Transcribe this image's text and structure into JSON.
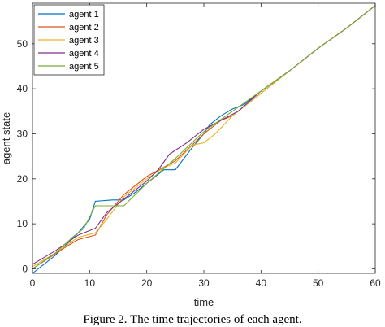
{
  "chart_data": {
    "type": "line",
    "xlabel": "time",
    "ylabel": "agent state",
    "xlim": [
      0,
      60
    ],
    "ylim": [
      -1,
      59
    ],
    "xticks": [
      0,
      10,
      20,
      30,
      40,
      50,
      60
    ],
    "yticks": [
      0,
      10,
      20,
      30,
      40,
      50
    ],
    "grid": false,
    "legend_position": "top-left",
    "series": [
      {
        "name": "agent 1",
        "color": "#0072BD",
        "x": [
          0,
          2,
          4,
          6,
          8,
          10,
          11,
          14,
          16,
          18,
          20,
          22,
          23,
          25,
          28,
          30,
          31,
          33,
          35,
          37,
          40,
          45,
          50,
          55,
          60
        ],
        "values": [
          -1,
          1,
          3,
          5.5,
          8,
          11,
          15,
          15.3,
          15.3,
          17,
          19,
          21,
          22,
          22,
          27,
          30,
          32,
          34,
          35.5,
          36.5,
          39.5,
          44,
          49,
          53.5,
          58.5
        ]
      },
      {
        "name": "agent 2",
        "color": "#D95319",
        "x": [
          0,
          3,
          6,
          8,
          11,
          13,
          16,
          20,
          25,
          30,
          33,
          35,
          40,
          45,
          50,
          55,
          60
        ],
        "values": [
          0,
          2.5,
          5,
          6.5,
          7.5,
          12,
          16.5,
          20.5,
          24,
          30,
          33,
          34,
          39,
          44,
          49,
          53.5,
          58.5
        ]
      },
      {
        "name": "agent 3",
        "color": "#EDB120",
        "x": [
          0,
          4,
          8,
          11,
          13,
          16,
          20,
          23,
          25,
          28,
          30,
          32,
          35,
          40,
          45,
          50,
          55,
          60
        ],
        "values": [
          0.5,
          3.5,
          7,
          8,
          11,
          16,
          20,
          22.5,
          23.5,
          27.5,
          28,
          30,
          34,
          39,
          44,
          49,
          53.5,
          58.5
        ]
      },
      {
        "name": "agent 4",
        "color": "#7E2F8E",
        "x": [
          0,
          4,
          8,
          11,
          13,
          16,
          20,
          22,
          24,
          27,
          30,
          33,
          36,
          40,
          45,
          50,
          55,
          60
        ],
        "values": [
          1,
          4,
          7.5,
          9,
          12.5,
          15.5,
          19.5,
          22,
          25.5,
          28,
          31,
          33,
          35,
          39.5,
          44,
          49,
          53.5,
          58.5
        ]
      },
      {
        "name": "agent 5",
        "color": "#77AC30",
        "x": [
          0,
          4,
          7,
          9,
          11,
          13,
          16,
          20,
          25,
          30,
          35,
          40,
          45,
          50,
          55,
          60
        ],
        "values": [
          0,
          3.5,
          7,
          9,
          14,
          14,
          14,
          19,
          24.5,
          30.5,
          35,
          39.5,
          44,
          49,
          53.5,
          58.5
        ]
      }
    ]
  },
  "caption": "Figure 2. The time trajectories of each agent."
}
